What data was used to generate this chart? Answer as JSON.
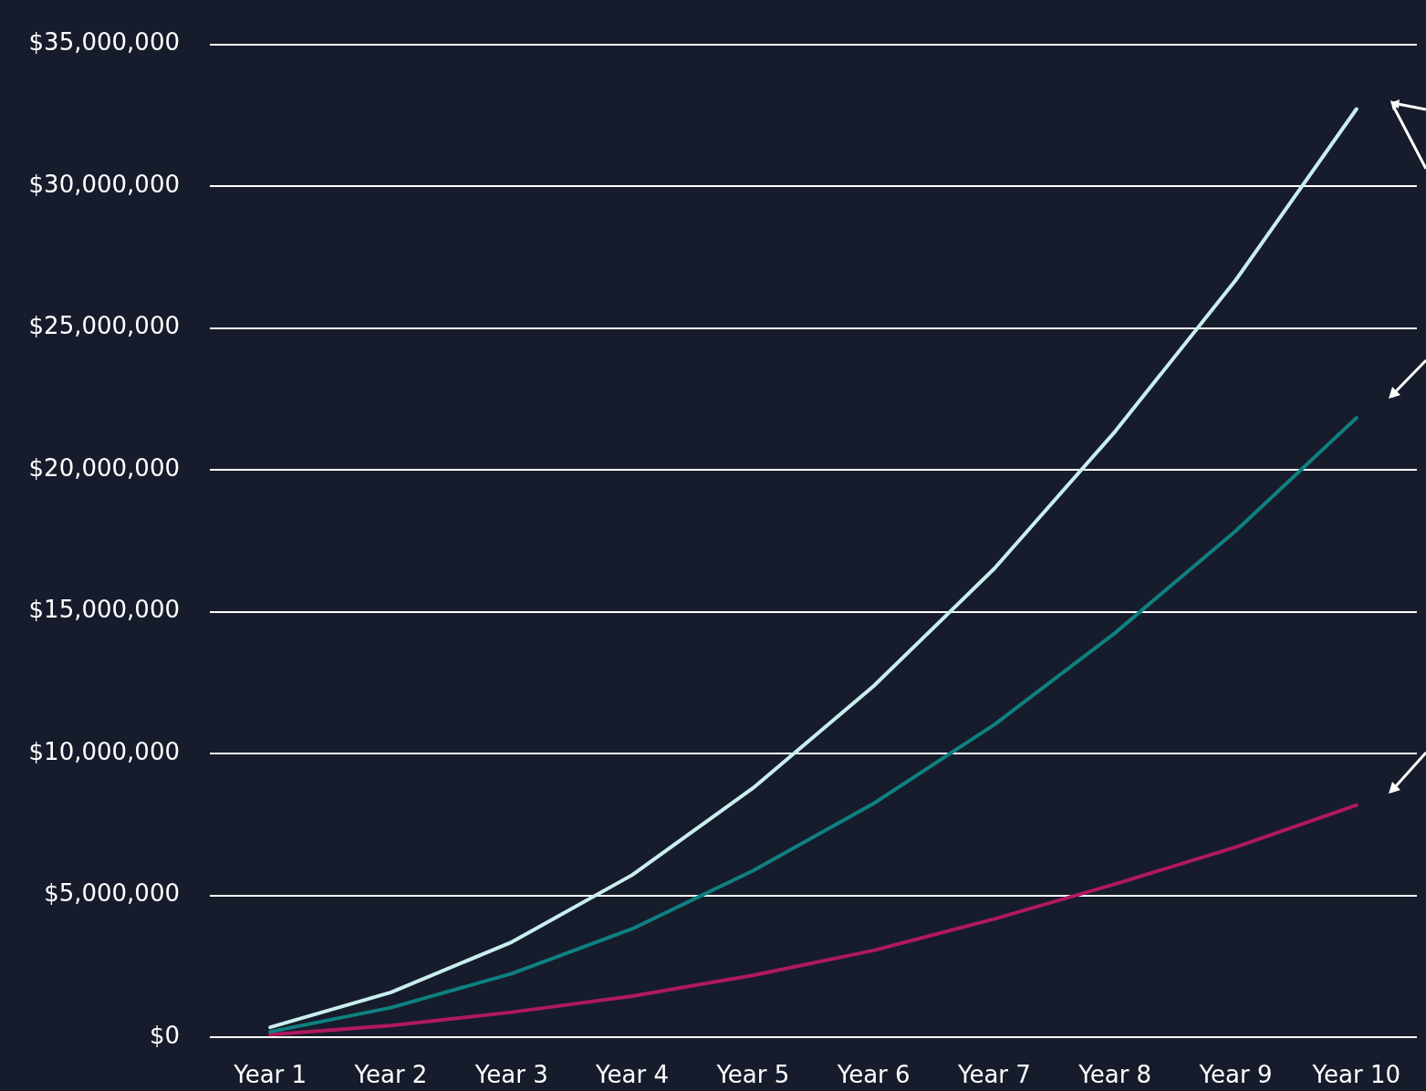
{
  "chart_data": {
    "type": "line",
    "categories": [
      "Year 1",
      "Year 2",
      "Year 3",
      "Year 4",
      "Year 5",
      "Year 6",
      "Year 7",
      "Year 8",
      "Year 9",
      "Year 10"
    ],
    "series": [
      {
        "color": "#c9eef0",
        "values": [
          350000,
          1580000,
          3350000,
          5720000,
          8780000,
          12380000,
          16520000,
          21350000,
          26690000,
          32720000
        ]
      },
      {
        "color": "#0f8080",
        "values": [
          190000,
          1040000,
          2240000,
          3820000,
          5870000,
          8240000,
          11020000,
          14250000,
          17850000,
          21830000
        ]
      },
      {
        "color": "#b0195e",
        "values": [
          90000,
          410000,
          880000,
          1450000,
          2180000,
          3060000,
          4170000,
          5400000,
          6700000,
          8180000
        ]
      }
    ],
    "ylim": [
      0,
      35000000
    ],
    "yticks": [
      {
        "value": 0,
        "label": "$0"
      },
      {
        "value": 5000000,
        "label": "$5,000,000"
      },
      {
        "value": 10000000,
        "label": "$10,000,000"
      },
      {
        "value": 15000000,
        "label": "$15,000,000"
      },
      {
        "value": 20000000,
        "label": "$20,000,000"
      },
      {
        "value": 25000000,
        "label": "$25,000,000"
      },
      {
        "value": 30000000,
        "label": "$30,000,000"
      },
      {
        "value": 35000000,
        "label": "$35,000,000"
      }
    ],
    "grid": "y",
    "legend": false,
    "marker": "none",
    "line_style": "solid"
  }
}
